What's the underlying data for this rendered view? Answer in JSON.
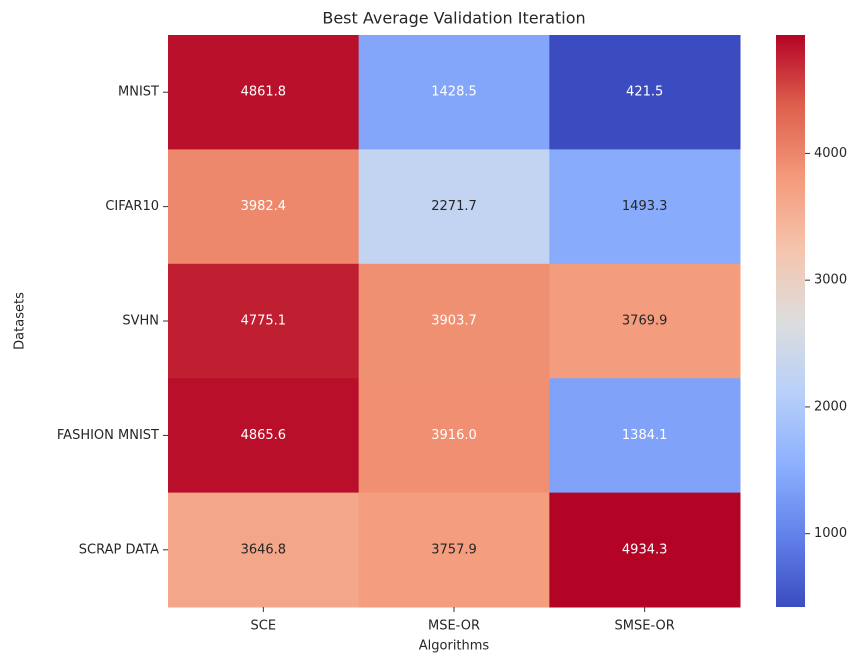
{
  "chart_data": {
    "type": "heatmap",
    "title": "Best Average Validation Iteration",
    "x_label": "Algorithms",
    "y_label": "Datasets",
    "x": [
      "SCE",
      "MSE-OR",
      "SMSE-OR"
    ],
    "y": [
      "MNIST",
      "CIFAR10",
      "SVHN",
      "FASHION MNIST",
      "SCRAP DATA"
    ],
    "values": [
      [
        4861.8,
        1428.5,
        421.5
      ],
      [
        3982.4,
        2271.7,
        1493.3
      ],
      [
        4775.1,
        3903.7,
        3769.9
      ],
      [
        4865.6,
        3916.0,
        1384.1
      ],
      [
        3646.8,
        3757.9,
        4934.3
      ]
    ],
    "value_labels": [
      [
        "4861.8",
        "1428.5",
        "421.5"
      ],
      [
        "3982.4",
        "2271.7",
        "1493.3"
      ],
      [
        "4775.1",
        "3903.7",
        "3769.9"
      ],
      [
        "4865.6",
        "3916.0",
        "1384.1"
      ],
      [
        "3646.8",
        "3757.9",
        "4934.3"
      ]
    ],
    "colormap": "coolwarm",
    "zlim": [
      421.5,
      4934.3
    ],
    "zticks": [
      1000,
      2000,
      3000,
      4000
    ]
  }
}
